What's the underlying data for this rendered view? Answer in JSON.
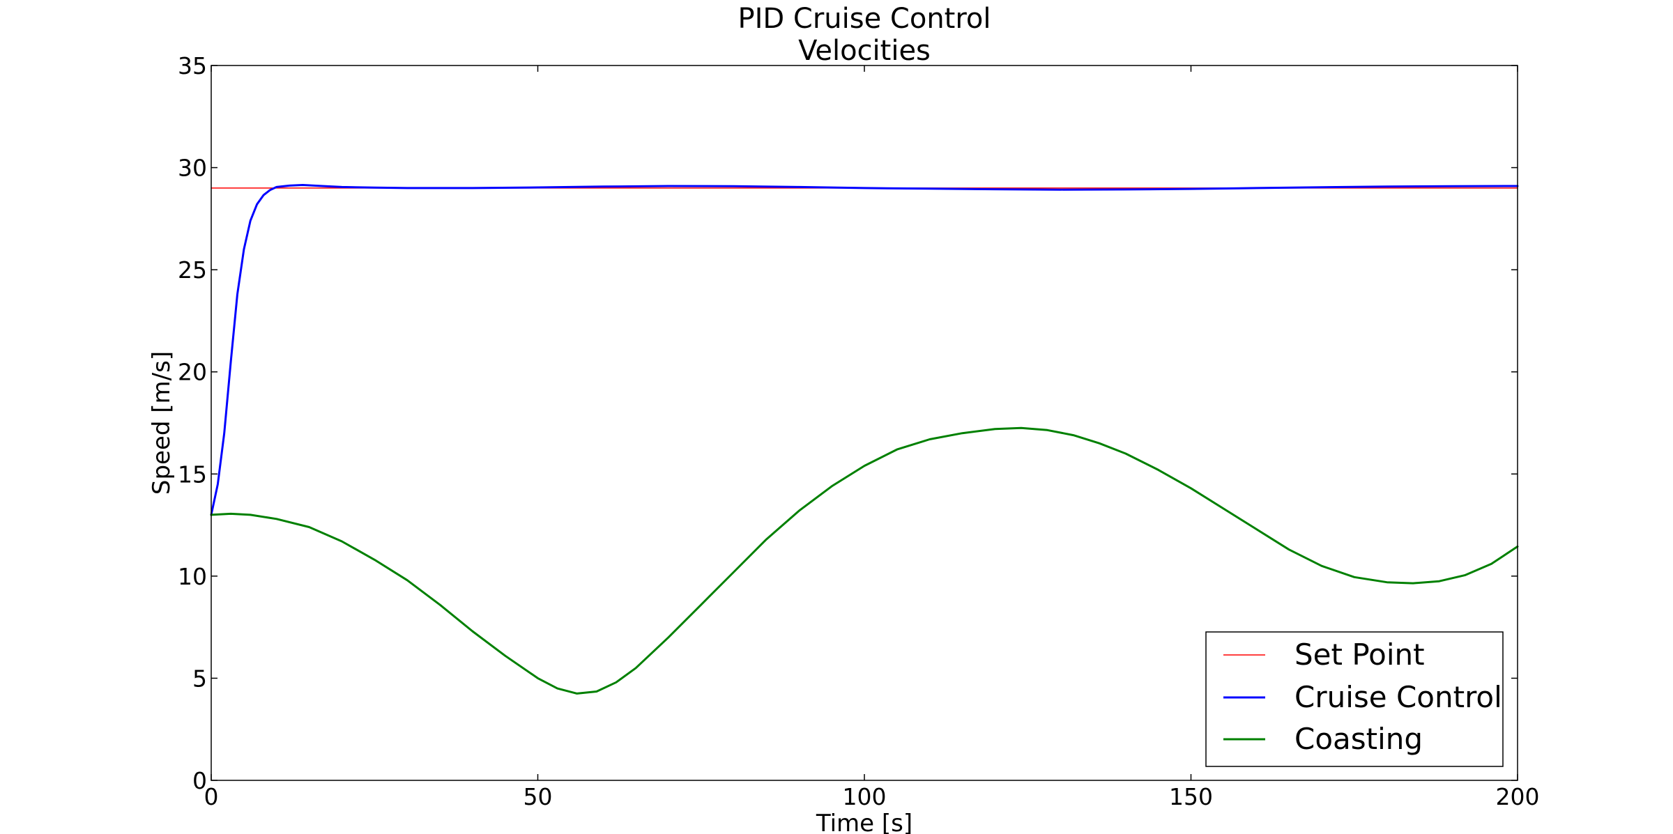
{
  "chart_data": {
    "type": "line",
    "title_lines": [
      "PID Cruise Control",
      "Velocities"
    ],
    "xlabel": "Time [s]",
    "ylabel": "Speed [m/s]",
    "xlim": [
      0,
      200
    ],
    "ylim": [
      0,
      35
    ],
    "xticks": [
      0,
      50,
      100,
      150,
      200
    ],
    "yticks": [
      0,
      5,
      10,
      15,
      20,
      25,
      30,
      35
    ],
    "grid": false,
    "legend_position": "bottom-right",
    "series": [
      {
        "name": "Set Point",
        "color": "#ff0000",
        "points": [
          [
            0,
            29
          ],
          [
            200,
            29
          ]
        ]
      },
      {
        "name": "Cruise Control",
        "color": "#0000ff",
        "points": [
          [
            0,
            13.0
          ],
          [
            1,
            14.5
          ],
          [
            2,
            17.0
          ],
          [
            3,
            20.5
          ],
          [
            4,
            23.8
          ],
          [
            5,
            26.0
          ],
          [
            6,
            27.4
          ],
          [
            7,
            28.2
          ],
          [
            8,
            28.65
          ],
          [
            9,
            28.9
          ],
          [
            10,
            29.05
          ],
          [
            12,
            29.12
          ],
          [
            14,
            29.15
          ],
          [
            17,
            29.1
          ],
          [
            20,
            29.05
          ],
          [
            25,
            29.02
          ],
          [
            30,
            29.0
          ],
          [
            40,
            29.0
          ],
          [
            50,
            29.03
          ],
          [
            60,
            29.07
          ],
          [
            70,
            29.1
          ],
          [
            80,
            29.09
          ],
          [
            90,
            29.05
          ],
          [
            100,
            29.0
          ],
          [
            110,
            28.97
          ],
          [
            120,
            28.94
          ],
          [
            130,
            28.92
          ],
          [
            140,
            28.93
          ],
          [
            150,
            28.96
          ],
          [
            160,
            29.0
          ],
          [
            170,
            29.04
          ],
          [
            180,
            29.07
          ],
          [
            190,
            29.09
          ],
          [
            200,
            29.1
          ]
        ]
      },
      {
        "name": "Coasting",
        "color": "#008000",
        "points": [
          [
            0,
            13.0
          ],
          [
            3,
            13.05
          ],
          [
            6,
            13.0
          ],
          [
            10,
            12.8
          ],
          [
            15,
            12.4
          ],
          [
            20,
            11.7
          ],
          [
            25,
            10.8
          ],
          [
            30,
            9.8
          ],
          [
            35,
            8.6
          ],
          [
            40,
            7.3
          ],
          [
            45,
            6.1
          ],
          [
            50,
            5.0
          ],
          [
            53,
            4.5
          ],
          [
            56,
            4.25
          ],
          [
            59,
            4.35
          ],
          [
            62,
            4.8
          ],
          [
            65,
            5.5
          ],
          [
            70,
            7.0
          ],
          [
            75,
            8.6
          ],
          [
            80,
            10.2
          ],
          [
            85,
            11.8
          ],
          [
            90,
            13.2
          ],
          [
            95,
            14.4
          ],
          [
            100,
            15.4
          ],
          [
            105,
            16.2
          ],
          [
            110,
            16.7
          ],
          [
            115,
            17.0
          ],
          [
            120,
            17.2
          ],
          [
            124,
            17.25
          ],
          [
            128,
            17.15
          ],
          [
            132,
            16.9
          ],
          [
            136,
            16.5
          ],
          [
            140,
            16.0
          ],
          [
            145,
            15.2
          ],
          [
            150,
            14.3
          ],
          [
            155,
            13.3
          ],
          [
            160,
            12.3
          ],
          [
            165,
            11.3
          ],
          [
            170,
            10.5
          ],
          [
            175,
            9.95
          ],
          [
            180,
            9.7
          ],
          [
            184,
            9.65
          ],
          [
            188,
            9.75
          ],
          [
            192,
            10.05
          ],
          [
            196,
            10.6
          ],
          [
            200,
            11.45
          ]
        ]
      }
    ]
  }
}
